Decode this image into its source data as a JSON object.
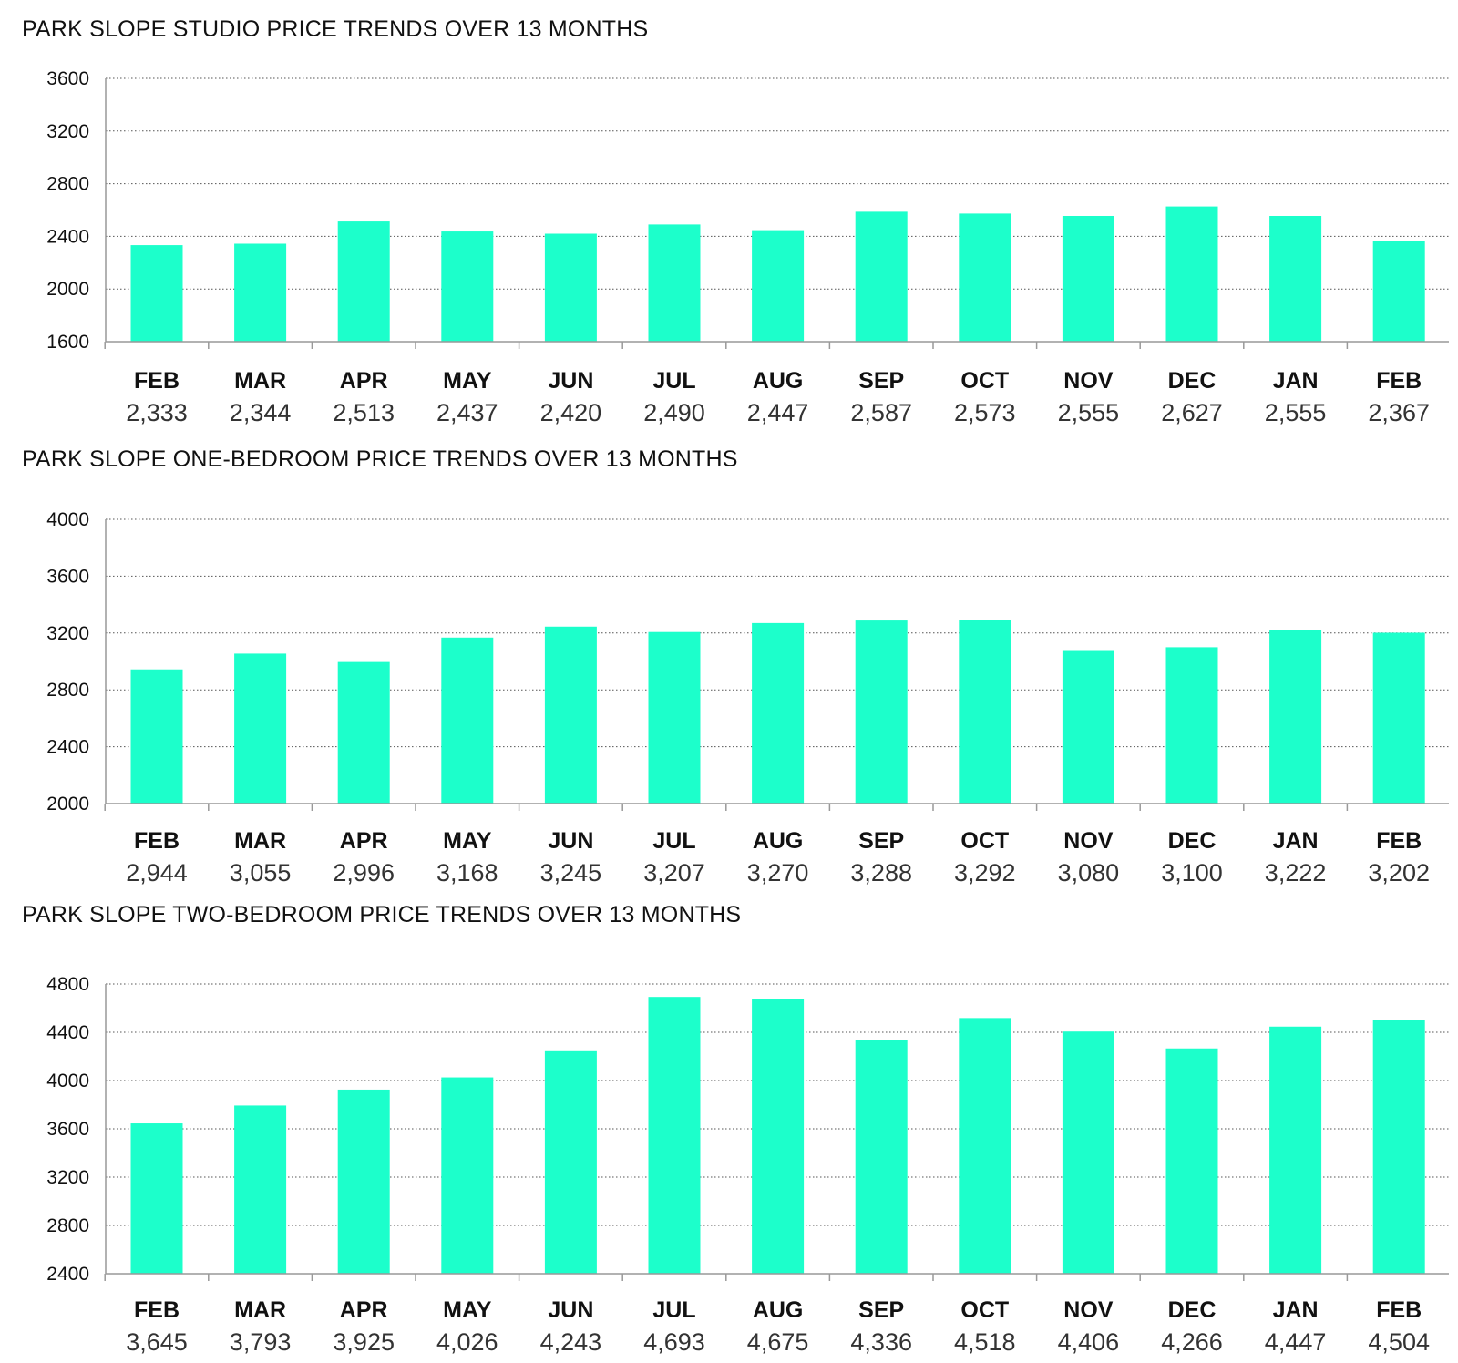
{
  "chart_data": [
    {
      "type": "bar",
      "title": "PARK SLOPE STUDIO PRICE TRENDS OVER 13 MONTHS",
      "categories": [
        "FEB",
        "MAR",
        "APR",
        "MAY",
        "JUN",
        "JUL",
        "AUG",
        "SEP",
        "OCT",
        "NOV",
        "DEC",
        "JAN",
        "FEB"
      ],
      "values": [
        2333,
        2344,
        2513,
        2437,
        2420,
        2490,
        2447,
        2587,
        2573,
        2555,
        2627,
        2555,
        2367
      ],
      "value_labels": [
        "2,333",
        "2,344",
        "2,513",
        "2,437",
        "2,420",
        "2,490",
        "2,447",
        "2,587",
        "2,573",
        "2,555",
        "2,627",
        "2,555",
        "2,367"
      ],
      "yticks": [
        1600,
        2000,
        2400,
        2800,
        3200,
        3600
      ],
      "ylim": [
        1600,
        3600
      ],
      "grid": "dotted horizontal",
      "color": "#1cffcb"
    },
    {
      "type": "bar",
      "title": "PARK SLOPE ONE-BEDROOM PRICE TRENDS OVER 13 MONTHS",
      "categories": [
        "FEB",
        "MAR",
        "APR",
        "MAY",
        "JUN",
        "JUL",
        "AUG",
        "SEP",
        "OCT",
        "NOV",
        "DEC",
        "JAN",
        "FEB"
      ],
      "values": [
        2944,
        3055,
        2996,
        3168,
        3245,
        3207,
        3270,
        3288,
        3292,
        3080,
        3100,
        3222,
        3202
      ],
      "value_labels": [
        "2,944",
        "3,055",
        "2,996",
        "3,168",
        "3,245",
        "3,207",
        "3,270",
        "3,288",
        "3,292",
        "3,080",
        "3,100",
        "3,222",
        "3,202"
      ],
      "yticks": [
        2000,
        2400,
        2800,
        3200,
        3600,
        4000
      ],
      "ylim": [
        2000,
        4000
      ],
      "grid": "dotted horizontal",
      "color": "#1cffcb"
    },
    {
      "type": "bar",
      "title": "PARK SLOPE TWO-BEDROOM PRICE TRENDS OVER 13 MONTHS",
      "categories": [
        "FEB",
        "MAR",
        "APR",
        "MAY",
        "JUN",
        "JUL",
        "AUG",
        "SEP",
        "OCT",
        "NOV",
        "DEC",
        "JAN",
        "FEB"
      ],
      "values": [
        3645,
        3793,
        3925,
        4026,
        4243,
        4693,
        4675,
        4336,
        4518,
        4406,
        4266,
        4447,
        4504
      ],
      "value_labels": [
        "3,645",
        "3,793",
        "3,925",
        "4,026",
        "4,243",
        "4,693",
        "4,675",
        "4,336",
        "4,518",
        "4,406",
        "4,266",
        "4,447",
        "4,504"
      ],
      "yticks": [
        2400,
        2800,
        3200,
        3600,
        4000,
        4400,
        4800
      ],
      "ylim": [
        2400,
        4800
      ],
      "grid": "dotted horizontal",
      "color": "#1cffcb"
    }
  ]
}
